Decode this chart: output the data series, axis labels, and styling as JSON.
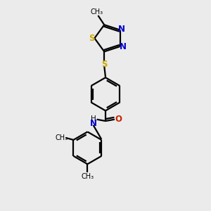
{
  "bg_color": "#ebebeb",
  "line_color": "#000000",
  "line_width": 1.6,
  "font_size": 8.5,
  "colors": {
    "S": "#ccaa00",
    "N": "#0000cc",
    "O": "#cc2200",
    "C": "#000000"
  },
  "xlim": [
    0,
    10
  ],
  "ylim": [
    0,
    10
  ]
}
